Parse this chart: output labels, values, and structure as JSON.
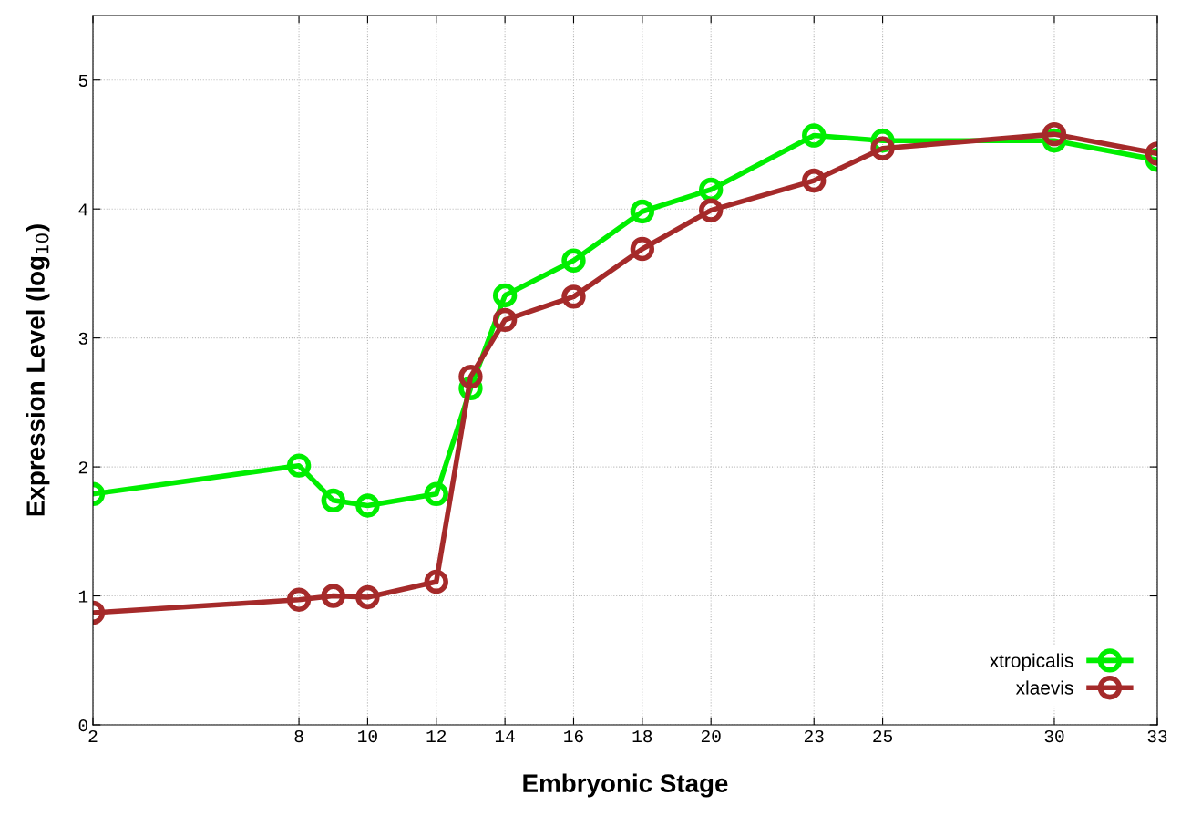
{
  "chart_data": {
    "type": "line",
    "xlabel": "Embryonic Stage",
    "ylabel": "Expression Level (log$_{10}$)",
    "xlim": [
      2,
      33
    ],
    "xticks": [
      2,
      8,
      10,
      12,
      14,
      16,
      18,
      20,
      23,
      25,
      30,
      33
    ],
    "ylim": [
      0,
      5.5
    ],
    "yticks": [
      0,
      1,
      2,
      3,
      4,
      5
    ],
    "grid": true,
    "legend": "bottom right",
    "marker": "circle",
    "line_style": "solid",
    "series": [
      {
        "name": "xtropicalis",
        "color": "#00ee00",
        "x": [
          2,
          8,
          9,
          10,
          12,
          13,
          14,
          16,
          18,
          20,
          23,
          25,
          30,
          33
        ],
        "values": [
          1.79,
          2.01,
          1.74,
          1.7,
          1.79,
          2.61,
          3.33,
          3.6,
          3.98,
          4.15,
          4.57,
          4.53,
          4.53,
          4.38
        ]
      },
      {
        "name": "xlaevis",
        "color": "#a52a2a",
        "x": [
          2,
          8,
          9,
          10,
          12,
          13,
          14,
          16,
          18,
          20,
          23,
          25,
          30,
          33
        ],
        "values": [
          0.87,
          0.97,
          1.0,
          0.99,
          1.11,
          2.7,
          3.14,
          3.32,
          3.69,
          3.99,
          4.22,
          4.47,
          4.58,
          4.43
        ]
      }
    ]
  }
}
